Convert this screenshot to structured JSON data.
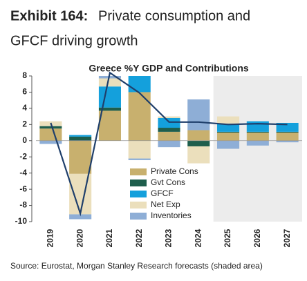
{
  "chart_data": {
    "type": "stacked_bar_line",
    "exhibit": "Exhibit 164:",
    "headline": [
      "Private consumption and",
      "GFCF driving growth"
    ],
    "title": "Greece %Y GDP and Contributions",
    "source": "Source: Eurostat, Morgan Stanley Research forecasts (shaded area)",
    "categories": [
      "2019",
      "2020",
      "2021",
      "2022",
      "2023",
      "2024",
      "2025",
      "2026",
      "2027"
    ],
    "forecast_from": "2025",
    "series": [
      {
        "name": "Private Cons",
        "color": "#c8b06e",
        "values": [
          1.5,
          -4.1,
          3.7,
          6.0,
          1.1,
          1.3,
          1.0,
          1.0,
          1.0
        ]
      },
      {
        "name": "Gvt Cons",
        "color": "#1e5e4c",
        "values": [
          0.3,
          0.5,
          0.4,
          0.0,
          0.5,
          -0.7,
          0.1,
          0.1,
          0.1
        ]
      },
      {
        "name": "GFCF",
        "color": "#14a0dc",
        "values": [
          0.0,
          0.2,
          2.6,
          2.0,
          1.2,
          0.0,
          1.0,
          1.3,
          1.1
        ]
      },
      {
        "name": "Net Exp",
        "color": "#ebdfbc",
        "values": [
          0.6,
          -5.0,
          1.0,
          -2.2,
          0.2,
          -2.1,
          0.9,
          0.0,
          0.0
        ]
      },
      {
        "name": "Inventories",
        "color": "#8eaed6",
        "values": [
          -0.4,
          -0.6,
          0.3,
          -0.2,
          -0.8,
          3.8,
          -1.0,
          -0.6,
          -0.2
        ]
      }
    ],
    "line": {
      "color": "#1f3f6b",
      "values": [
        2.2,
        -9.0,
        8.4,
        5.9,
        2.3,
        2.3,
        2.0,
        2.1,
        2.0
      ]
    },
    "ylim": [
      -10,
      8
    ],
    "yticks": [
      8,
      6,
      4,
      2,
      0,
      -2,
      -4,
      -6,
      -8,
      -10
    ]
  }
}
